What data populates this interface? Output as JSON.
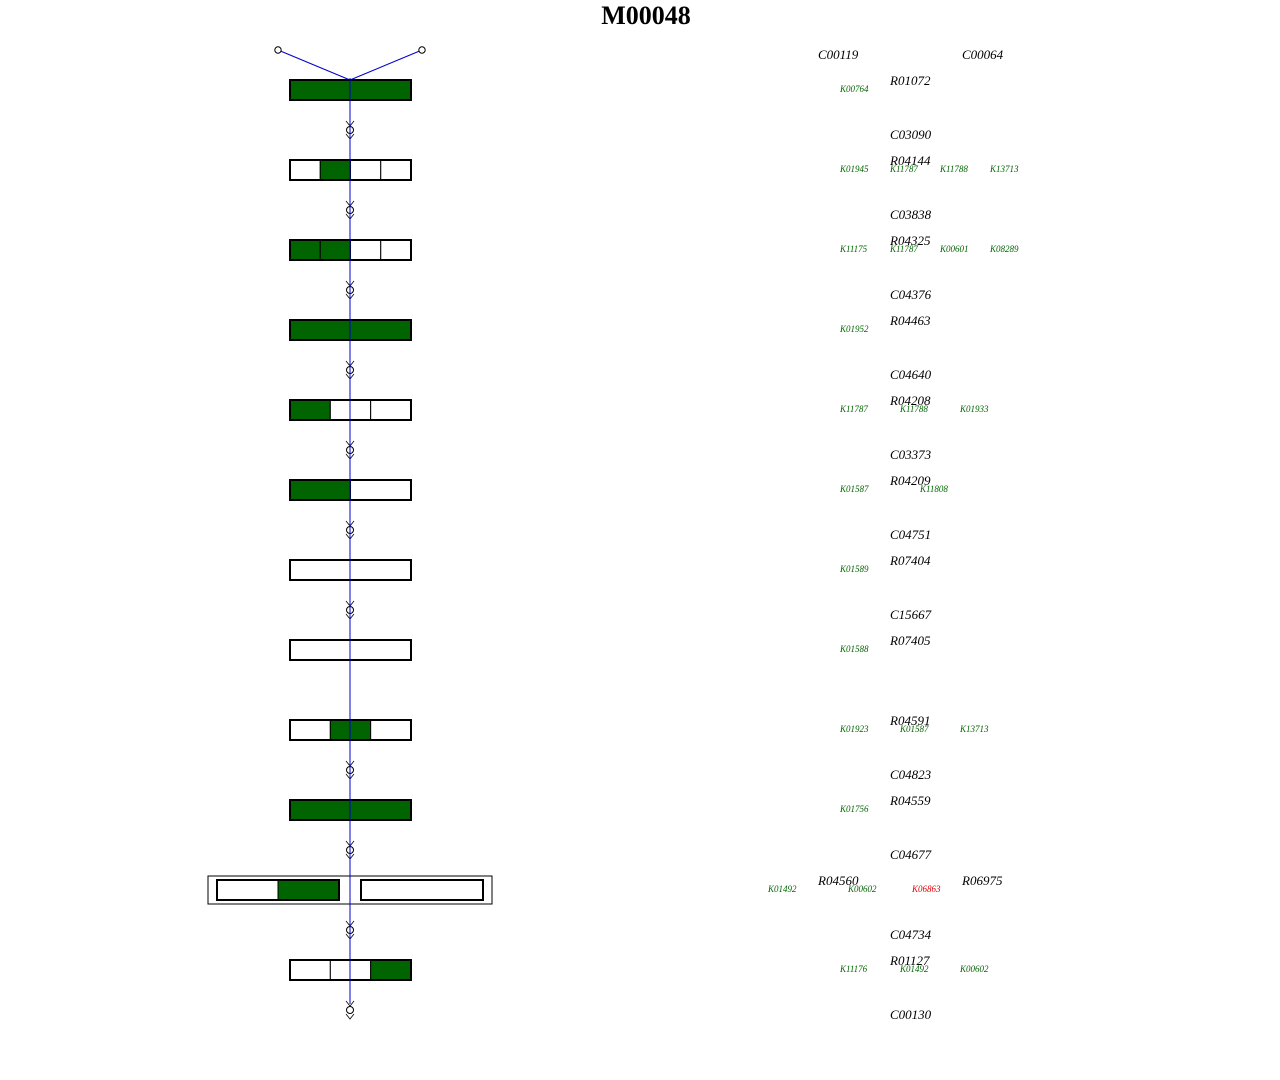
{
  "title": "M00048",
  "colors": {
    "present": "#006400",
    "absent": "#ffffff",
    "edge": "#0000cc",
    "outline": "#000000",
    "missing_ko": "#dd0000"
  },
  "top_compounds": [
    "C00119",
    "C00064"
  ],
  "steps": [
    {
      "reaction": "R01072",
      "segments": [
        1
      ],
      "orthologs": [
        {
          "id": "K00764",
          "status": "present"
        }
      ]
    },
    {
      "product": "C03090",
      "reaction": "R04144",
      "segments": [
        0,
        1,
        0,
        0
      ],
      "orthologs": [
        {
          "id": "K01945",
          "status": "present"
        },
        {
          "id": "K11787",
          "status": "present"
        },
        {
          "id": "K11788",
          "status": "present"
        },
        {
          "id": "K13713",
          "status": "present"
        }
      ]
    },
    {
      "product": "C03838",
      "reaction": "R04325",
      "segments": [
        1,
        1,
        0,
        0
      ],
      "orthologs": [
        {
          "id": "K11175",
          "status": "present"
        },
        {
          "id": "K11787",
          "status": "present"
        },
        {
          "id": "K00601",
          "status": "present"
        },
        {
          "id": "K08289",
          "status": "present"
        }
      ]
    },
    {
      "product": "C04376",
      "reaction": "R04463",
      "segments": [
        1
      ],
      "orthologs": [
        {
          "id": "K01952",
          "status": "present"
        }
      ]
    },
    {
      "product": "C04640",
      "reaction": "R04208",
      "segments": [
        1,
        0,
        0
      ],
      "orthologs": [
        {
          "id": "K11787",
          "status": "present"
        },
        {
          "id": "K11788",
          "status": "present"
        },
        {
          "id": "K01933",
          "status": "present"
        }
      ]
    },
    {
      "product": "C03373",
      "reaction": "R04209",
      "segments": [
        1,
        0
      ],
      "orthologs": [
        {
          "id": "K01587",
          "status": "present"
        },
        {
          "id": "K11808",
          "status": "present"
        }
      ]
    },
    {
      "product": "C04751",
      "reaction": "R07404",
      "segments": [
        0
      ],
      "orthologs": [
        {
          "id": "K01589",
          "status": "present"
        }
      ]
    },
    {
      "product": "C15667",
      "reaction": "R07405",
      "segments": [
        0
      ],
      "orthologs": [
        {
          "id": "K01588",
          "status": "present"
        }
      ]
    },
    {
      "reaction": "R04591",
      "segments": [
        0,
        1,
        0
      ],
      "orthologs": [
        {
          "id": "K01923",
          "status": "present"
        },
        {
          "id": "K01587",
          "status": "present"
        },
        {
          "id": "K13713",
          "status": "present"
        }
      ]
    },
    {
      "product": "C04823",
      "reaction": "R04559",
      "segments": [
        1
      ],
      "orthologs": [
        {
          "id": "K01756",
          "status": "present"
        }
      ]
    },
    {
      "product": "C04677",
      "reaction": "R04560",
      "reaction2": "R06975",
      "complex": true,
      "orthologs": [
        {
          "id": "K01492",
          "status": "present"
        },
        {
          "id": "K00602",
          "status": "present"
        },
        {
          "id": "K06863",
          "status": "missing"
        }
      ]
    },
    {
      "product": "C04734",
      "reaction": "R01127",
      "segments": [
        0,
        0,
        1
      ],
      "orthologs": [
        {
          "id": "K11176",
          "status": "present"
        },
        {
          "id": "K01492",
          "status": "present"
        },
        {
          "id": "K00602",
          "status": "present"
        }
      ]
    }
  ],
  "final_compound": "C00130"
}
